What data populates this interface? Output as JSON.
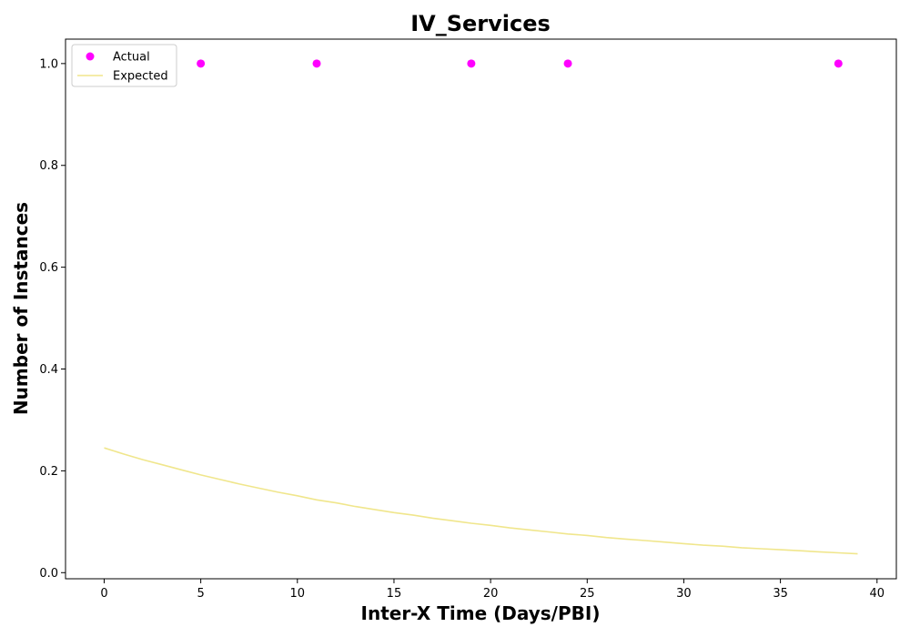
{
  "chart_data": {
    "type": "scatter",
    "title": "IV_Services",
    "xlabel": "Inter-X Time (Days/PBI)",
    "ylabel": "Number of Instances",
    "xlim": [
      -2,
      41
    ],
    "ylim": [
      -0.012,
      1.048
    ],
    "xticks": [
      0,
      5,
      10,
      15,
      20,
      25,
      30,
      35,
      40
    ],
    "yticks": [
      0.0,
      0.2,
      0.4,
      0.6,
      0.8,
      1.0
    ],
    "xtick_labels": [
      "0",
      "5",
      "10",
      "15",
      "20",
      "25",
      "30",
      "35",
      "40"
    ],
    "ytick_labels": [
      "0.0",
      "0.2",
      "0.4",
      "0.6",
      "0.8",
      "1.0"
    ],
    "grid": false,
    "legend_position": "top-left",
    "series": [
      {
        "name": "Actual",
        "kind": "scatter",
        "color": "#ff00ff",
        "x": [
          5,
          11,
          19,
          24,
          38
        ],
        "y": [
          1.0,
          1.0,
          1.0,
          1.0,
          1.0
        ]
      },
      {
        "name": "Expected",
        "kind": "line",
        "color": "#f0e68c",
        "x": [
          0,
          1,
          2,
          3,
          4,
          5,
          6,
          7,
          8,
          9,
          10,
          11,
          12,
          13,
          14,
          15,
          16,
          17,
          18,
          19,
          20,
          21,
          22,
          23,
          24,
          25,
          26,
          27,
          28,
          29,
          30,
          31,
          32,
          33,
          34,
          35,
          36,
          37,
          38,
          39
        ],
        "y": [
          0.245,
          0.233,
          0.222,
          0.212,
          0.202,
          0.192,
          0.183,
          0.174,
          0.166,
          0.158,
          0.151,
          0.143,
          0.137,
          0.13,
          0.124,
          0.118,
          0.113,
          0.107,
          0.102,
          0.097,
          0.093,
          0.088,
          0.084,
          0.08,
          0.076,
          0.073,
          0.069,
          0.066,
          0.063,
          0.06,
          0.057,
          0.054,
          0.052,
          0.049,
          0.047,
          0.045,
          0.043,
          0.041,
          0.039,
          0.037
        ]
      }
    ]
  }
}
